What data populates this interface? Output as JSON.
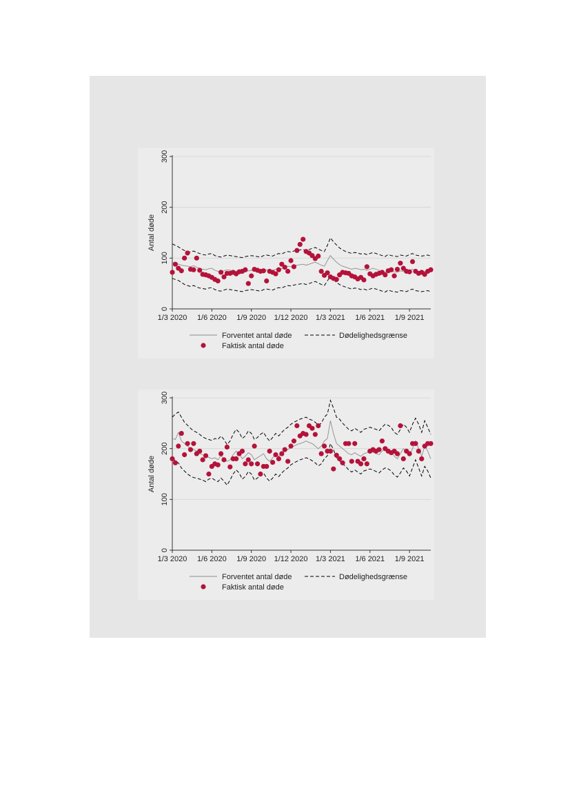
{
  "chart_data": [
    {
      "type": "line",
      "ylabel": "Antal døde",
      "xlabel": "",
      "ylim": [
        0,
        300
      ],
      "yticks": [
        "0",
        "100",
        "200",
        "300"
      ],
      "xticks": [
        "1/3 2020",
        "1/6 2020",
        "1/9 2020",
        "1/12 2020",
        "1/3 2021",
        "1/6 2021",
        "1/9 2021"
      ],
      "x_week_range": [
        0,
        85
      ],
      "xtick_weeks": [
        0,
        13,
        26,
        39,
        52,
        65,
        78
      ],
      "grid": "horizontal",
      "legend_position": "bottom",
      "legend": {
        "expected": "Forventet antal døde",
        "threshold": "Dødelighedsgrænse",
        "actual": "Faktisk antal døde"
      },
      "series": [
        {
          "name": "Forventet antal døde",
          "style": "solid",
          "color": "#8c8c8c",
          "values": [
            92,
            90,
            88,
            86,
            85,
            84,
            83,
            85,
            82,
            80,
            78,
            77,
            79,
            80,
            76,
            74,
            73,
            75,
            77,
            76,
            75,
            74,
            73,
            72,
            74,
            75,
            76,
            75,
            74,
            73,
            76,
            77,
            76,
            75,
            78,
            80,
            79,
            82,
            84,
            83,
            85,
            86,
            87,
            88,
            86,
            88,
            90,
            92,
            89,
            86,
            84,
            95,
            105,
            98,
            92,
            87,
            84,
            82,
            80,
            78,
            80,
            79,
            77,
            78,
            76,
            78,
            80,
            78,
            76,
            74,
            72,
            76,
            74,
            73,
            72,
            75,
            74,
            73,
            76,
            78,
            75,
            74,
            73,
            74,
            75,
            73
          ]
        },
        {
          "name": "Dødelighedsgrænse",
          "style": "dashed",
          "color": "#000000",
          "values": [
            128,
            125,
            122,
            118,
            115,
            113,
            112,
            114,
            111,
            109,
            107,
            106,
            108,
            109,
            105,
            103,
            102,
            104,
            106,
            105,
            104,
            103,
            102,
            101,
            103,
            104,
            105,
            104,
            103,
            102,
            105,
            106,
            105,
            104,
            107,
            109,
            108,
            111,
            113,
            112,
            114,
            115,
            116,
            117,
            115,
            117,
            119,
            121,
            118,
            115,
            113,
            125,
            140,
            132,
            126,
            120,
            116,
            113,
            111,
            109,
            111,
            110,
            108,
            109,
            107,
            109,
            111,
            109,
            107,
            105,
            103,
            107,
            105,
            104,
            103,
            106,
            105,
            104,
            107,
            109,
            106,
            105,
            104,
            105,
            106,
            104
          ]
        },
        {
          "name": "Dødelighedsgrænse",
          "style": "dashed",
          "color": "#000000",
          "values": [
            60,
            58,
            56,
            52,
            48,
            46,
            44,
            46,
            43,
            41,
            40,
            39,
            41,
            42,
            38,
            36,
            35,
            37,
            39,
            38,
            37,
            36,
            35,
            34,
            36,
            37,
            38,
            37,
            36,
            35,
            38,
            39,
            38,
            37,
            40,
            42,
            41,
            44,
            46,
            45,
            47,
            48,
            49,
            50,
            48,
            50,
            52,
            54,
            51,
            48,
            46,
            55,
            65,
            58,
            52,
            48,
            45,
            43,
            41,
            39,
            41,
            40,
            38,
            39,
            37,
            39,
            41,
            39,
            37,
            35,
            33,
            37,
            35,
            34,
            33,
            36,
            35,
            34,
            37,
            39,
            36,
            35,
            34,
            35,
            36,
            34
          ]
        },
        {
          "name": "Faktisk antal døde",
          "style": "dots",
          "color": "#b5123a",
          "values": [
            72,
            88,
            80,
            75,
            100,
            110,
            78,
            77,
            100,
            76,
            68,
            67,
            65,
            62,
            58,
            55,
            72,
            63,
            70,
            70,
            72,
            69,
            73,
            74,
            77,
            50,
            65,
            78,
            76,
            74,
            75,
            55,
            74,
            72,
            69,
            77,
            88,
            82,
            74,
            95,
            83,
            115,
            127,
            137,
            113,
            110,
            105,
            99,
            104,
            74,
            66,
            71,
            63,
            60,
            58,
            67,
            72,
            71,
            70,
            65,
            63,
            59,
            62,
            57,
            83,
            69,
            65,
            68,
            70,
            72,
            67,
            75,
            77,
            65,
            78,
            90,
            80,
            74,
            73,
            93,
            74,
            70,
            72,
            68,
            74,
            77
          ]
        }
      ]
    },
    {
      "type": "line",
      "ylabel": "Antal døde",
      "xlabel": "",
      "ylim": [
        0,
        300
      ],
      "yticks": [
        "0",
        "100",
        "200",
        "300"
      ],
      "xticks": [
        "1/3 2020",
        "1/6 2020",
        "1/9 2020",
        "1/12 2020",
        "1/3 2021",
        "1/6 2021",
        "1/9 2021"
      ],
      "x_week_range": [
        0,
        85
      ],
      "xtick_weeks": [
        0,
        13,
        26,
        39,
        52,
        65,
        78
      ],
      "grid": "horizontal",
      "legend_position": "bottom",
      "legend": {
        "expected": "Forventet antal døde",
        "threshold": "Dødelighedsgrænse",
        "actual": "Faktisk antal døde"
      },
      "series": [
        {
          "name": "Forventet antal døde",
          "style": "solid",
          "color": "#8c8c8c",
          "values": [
            220,
            218,
            232,
            215,
            210,
            205,
            200,
            198,
            195,
            190,
            188,
            185,
            183,
            180,
            182,
            178,
            186,
            180,
            175,
            178,
            188,
            195,
            190,
            180,
            185,
            192,
            188,
            178,
            182,
            186,
            190,
            180,
            175,
            182,
            188,
            185,
            190,
            195,
            198,
            202,
            205,
            208,
            210,
            212,
            215,
            212,
            210,
            205,
            200,
            205,
            215,
            220,
            255,
            230,
            210,
            205,
            200,
            195,
            190,
            188,
            192,
            188,
            185,
            190,
            192,
            195,
            193,
            190,
            188,
            195,
            200,
            198,
            195,
            185,
            180,
            190,
            200,
            195,
            185,
            200,
            215,
            200,
            185,
            205,
            195,
            180,
            180
          ]
        },
        {
          "name": "Dødelighedsgrænse",
          "style": "dashed",
          "color": "#000000",
          "values": [
            262,
            268,
            272,
            262,
            252,
            246,
            240,
            235,
            232,
            228,
            223,
            220,
            218,
            216,
            220,
            218,
            225,
            218,
            208,
            215,
            228,
            238,
            232,
            220,
            225,
            235,
            230,
            218,
            222,
            228,
            232,
            222,
            215,
            222,
            230,
            225,
            232,
            238,
            242,
            248,
            252,
            255,
            258,
            260,
            262,
            258,
            256,
            252,
            246,
            250,
            262,
            268,
            295,
            280,
            262,
            258,
            250,
            244,
            238,
            235,
            240,
            236,
            232,
            238,
            240,
            242,
            240,
            238,
            235,
            242,
            248,
            246,
            242,
            232,
            228,
            238,
            248,
            242,
            232,
            248,
            260,
            248,
            232,
            255,
            242,
            228,
            226
          ]
        },
        {
          "name": "Dødelighedsgrænse",
          "style": "dashed",
          "color": "#000000",
          "values": [
            180,
            176,
            172,
            162,
            156,
            150,
            146,
            143,
            142,
            140,
            138,
            135,
            140,
            142,
            138,
            135,
            142,
            136,
            128,
            138,
            150,
            158,
            152,
            140,
            145,
            155,
            150,
            138,
            142,
            148,
            152,
            142,
            136,
            142,
            150,
            145,
            152,
            158,
            162,
            168,
            172,
            175,
            178,
            180,
            182,
            180,
            176,
            172,
            166,
            170,
            180,
            186,
            210,
            198,
            182,
            176,
            170,
            165,
            158,
            154,
            158,
            154,
            150,
            156,
            158,
            160,
            158,
            155,
            152,
            158,
            162,
            160,
            156,
            148,
            144,
            152,
            162,
            156,
            146,
            162,
            178,
            162,
            146,
            165,
            156,
            142,
            140
          ]
        },
        {
          "name": "Faktisk antal døde",
          "style": "dots",
          "color": "#b5123a",
          "values": [
            180,
            172,
            205,
            230,
            188,
            210,
            198,
            210,
            190,
            195,
            178,
            186,
            150,
            165,
            170,
            168,
            190,
            178,
            203,
            164,
            180,
            180,
            190,
            195,
            170,
            178,
            170,
            205,
            170,
            150,
            165,
            165,
            195,
            173,
            188,
            180,
            190,
            198,
            175,
            205,
            215,
            245,
            225,
            230,
            228,
            245,
            240,
            228,
            245,
            190,
            205,
            195,
            195,
            160,
            187,
            180,
            172,
            210,
            210,
            175,
            210,
            175,
            170,
            180,
            170,
            195,
            198,
            195,
            198,
            215,
            200,
            195,
            192,
            195,
            190,
            245,
            180,
            195,
            190,
            210,
            210,
            195,
            180,
            205,
            210,
            210,
            210
          ]
        }
      ]
    }
  ]
}
